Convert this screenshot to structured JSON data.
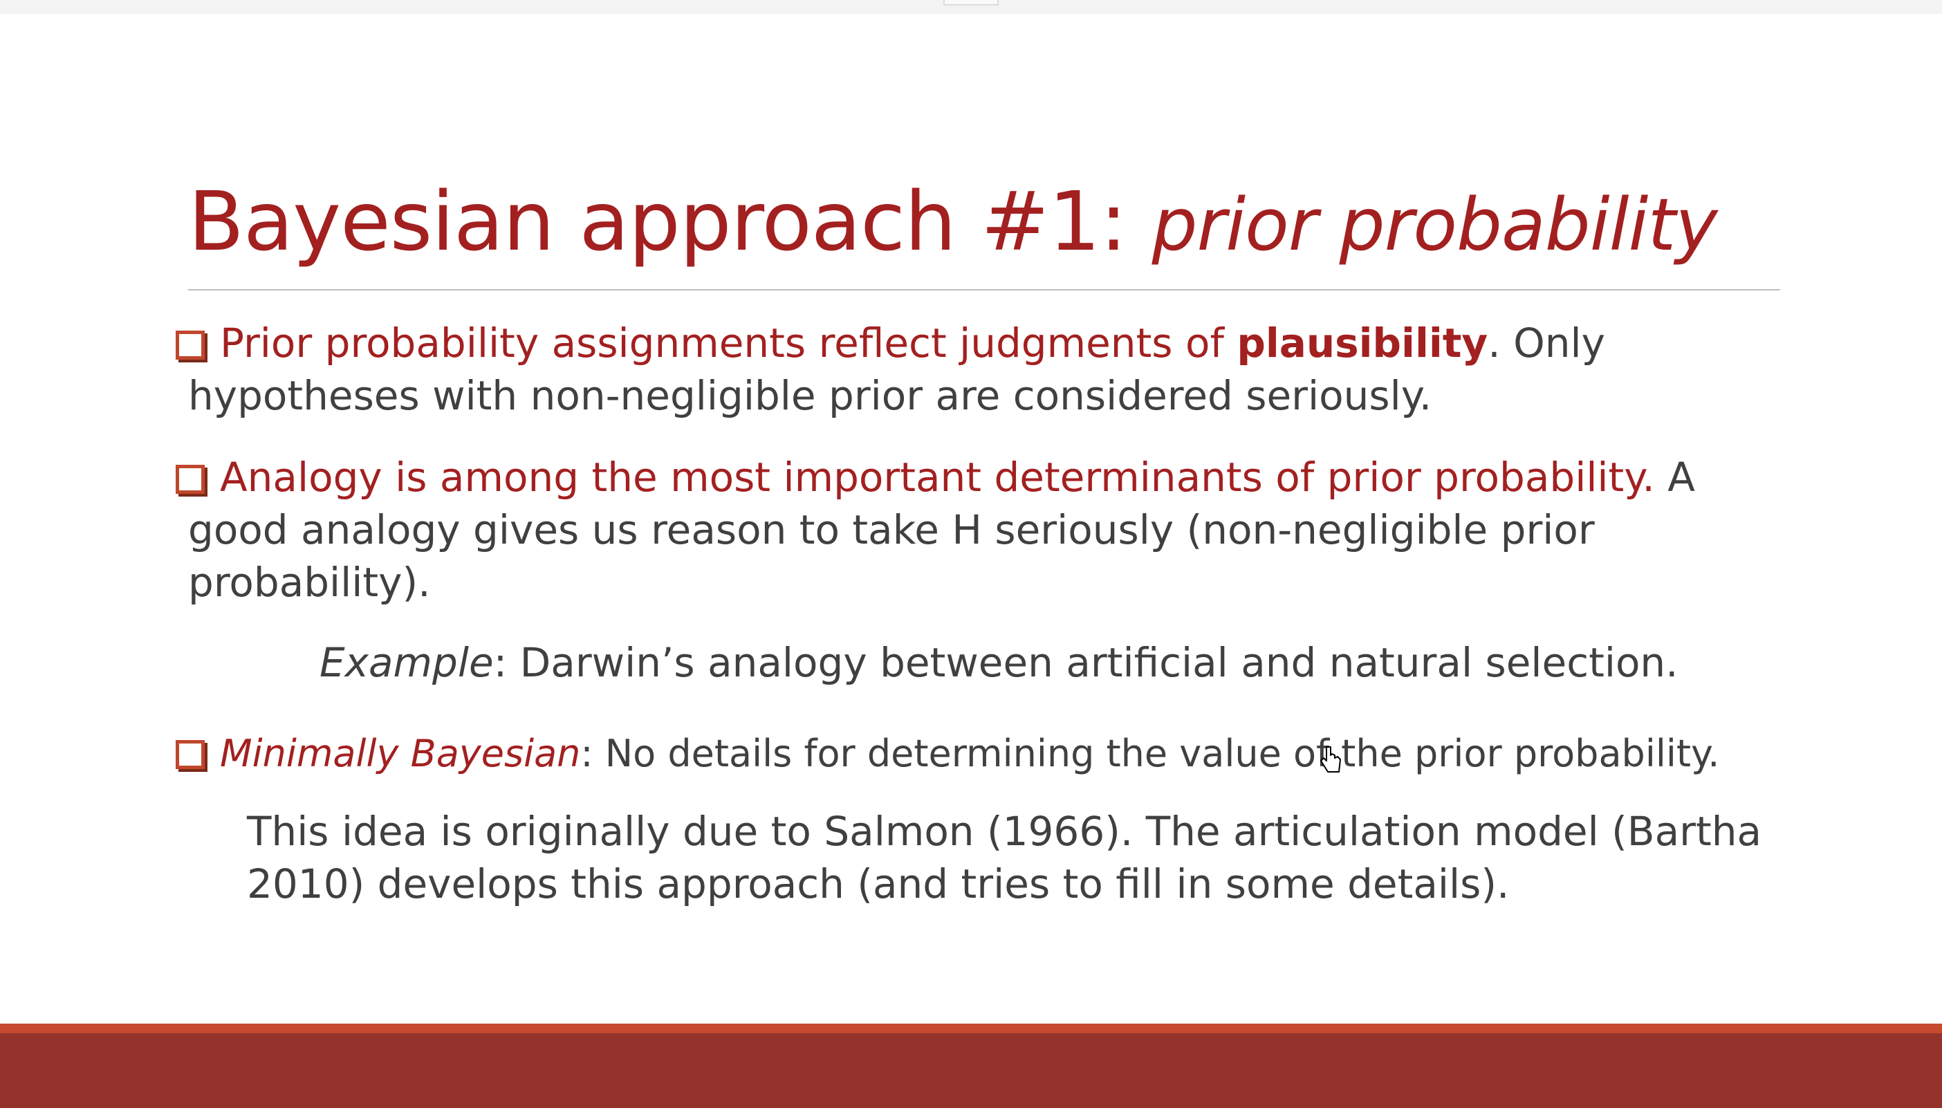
{
  "slide": {
    "title": {
      "main": "Bayesian approach #1: ",
      "italic": "prior probability"
    },
    "bullets": [
      {
        "red_text": "Prior probability assignments reflect judgments of ",
        "red_bold": "plausibility",
        "dark_text": ". Only hypotheses with non-negligible prior are considered seriously."
      },
      {
        "red_text": "Analogy is among the most important determinants of prior probability.",
        "dark_text": " A good analogy gives us reason to take H seriously (non-negligible prior probability)."
      }
    ],
    "example": {
      "label": "Example",
      "text": ": Darwin’s analogy between artificial and natural selection."
    },
    "third_bullet": {
      "red_italic": "Minimally Bayesian",
      "dark_text": ": No details for determining the value of the prior probability."
    },
    "note": "This idea is originally due to Salmon (1966). The articulation model (Bartha 2010) develops this approach (and tries to fill in some details)."
  },
  "colors": {
    "title_red": "#a32020",
    "body_gray": "#404040",
    "bullet_orange": "#c0462c",
    "footer_band": "#93332b",
    "footer_accent": "#c54a2f"
  },
  "icons": {
    "bullet": "square-bullet-icon",
    "cursor": "hand-cursor-icon"
  }
}
